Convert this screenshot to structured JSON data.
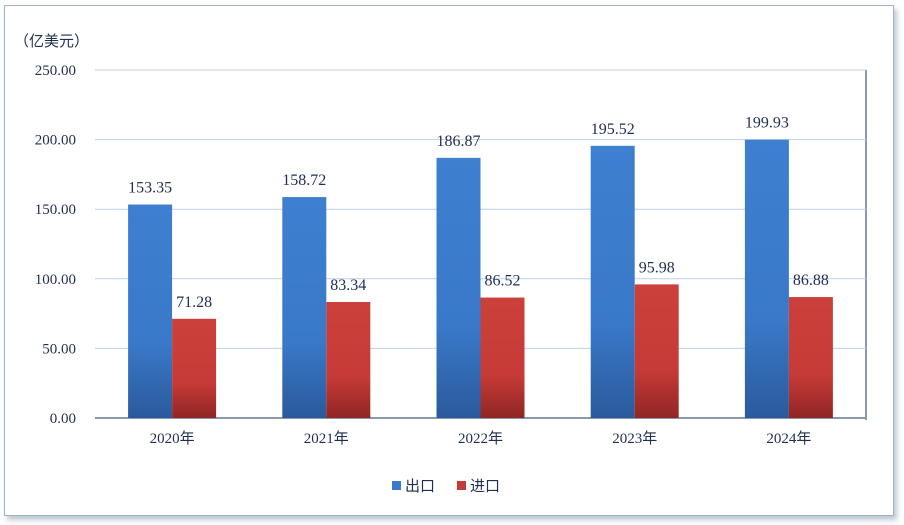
{
  "chart_data": {
    "type": "bar",
    "unit_label": "（亿美元）",
    "categories": [
      "2020年",
      "2021年",
      "2022年",
      "2023年",
      "2024年"
    ],
    "series": [
      {
        "name": "出口",
        "values": [
          153.35,
          158.72,
          186.87,
          195.52,
          199.93
        ],
        "color": "#3a79c9"
      },
      {
        "name": "进口",
        "values": [
          71.28,
          83.34,
          86.52,
          95.98,
          86.88
        ],
        "color": "#c63a37"
      }
    ],
    "y_ticks": [
      "0.00",
      "50.00",
      "100.00",
      "150.00",
      "200.00",
      "250.00"
    ],
    "ylim": [
      0,
      250
    ],
    "grid": true,
    "legend_position": "bottom"
  }
}
